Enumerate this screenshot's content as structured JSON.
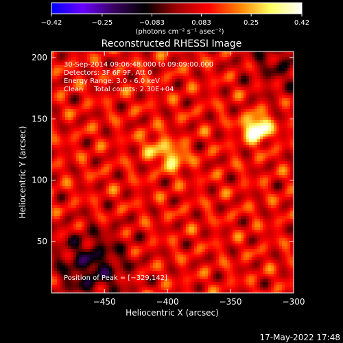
{
  "chart_data": {
    "type": "heatmap",
    "title": "Reconstructed RHESSI Image",
    "xlabel": "Heliocentric X (arcsec)",
    "ylabel": "Heliocentric Y (arcsec)",
    "xlim": [
      -492,
      -300
    ],
    "ylim": [
      8,
      205
    ],
    "x_ticks": [
      -450,
      -400,
      -350,
      -300
    ],
    "x_tick_labels": [
      "−450",
      "−400",
      "−350",
      "−300"
    ],
    "y_ticks": [
      50,
      100,
      150,
      200
    ],
    "y_tick_labels": [
      "50",
      "100",
      "150",
      "200"
    ],
    "colorbar": {
      "min": -0.42,
      "max": 0.42,
      "ticks": [
        -0.42,
        -0.25,
        -0.083,
        0.083,
        0.25,
        0.42
      ],
      "tick_labels": [
        "−0.42",
        "−0.25",
        "−0.083",
        "0.083",
        "0.25",
        "0.42"
      ],
      "units_label": "(photons cm⁻² s⁻¹ asec⁻²)",
      "stops": [
        "#0000ff",
        "#6a00ff",
        "#3a0060",
        "#000000",
        "#a00000",
        "#ff0000",
        "#ff8000",
        "#ffff60",
        "#ffffff"
      ]
    },
    "annotations": [
      "30-Sep-2014 09:06:48.000 to 09:09:00.000",
      "Detectors: 3F 6F 9F, Att 0",
      "Energy Range: 3.0 - 6.0 keV",
      "Clean     Total counts: 2.30E+04"
    ],
    "peak_label": "Position of Peak = [−329,142]",
    "sources": [
      {
        "x": -329,
        "y": 142,
        "amplitude": 0.42
      },
      {
        "x": -395,
        "y": 118,
        "amplitude": 0.22
      },
      {
        "x": -410,
        "y": 128,
        "amplitude": 0.15
      }
    ],
    "negative_regions": [
      {
        "x": -460,
        "y": 30,
        "amplitude": -0.2
      },
      {
        "x": -310,
        "y": 200,
        "amplitude": -0.12
      }
    ]
  },
  "footer": {
    "timestamp": "17-May-2022 17:48"
  }
}
